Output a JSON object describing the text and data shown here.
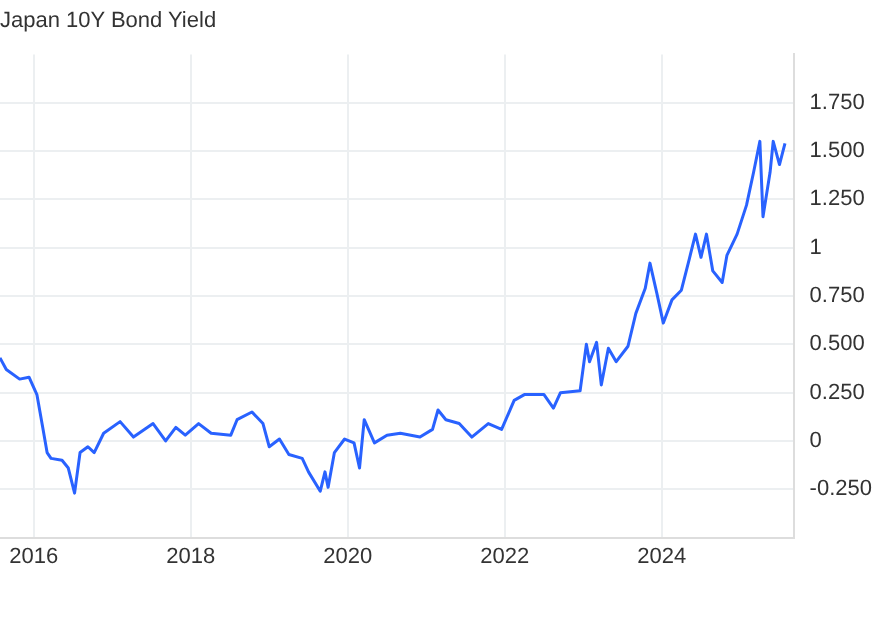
{
  "chart_data": {
    "type": "line",
    "title": "Japan 10Y Bond Yield",
    "x": [
      2015.57,
      2015.65,
      2015.82,
      2015.94,
      2016.04,
      2016.11,
      2016.17,
      2016.22,
      2016.36,
      2016.44,
      2016.52,
      2016.59,
      2016.69,
      2016.77,
      2016.89,
      2017.1,
      2017.27,
      2017.52,
      2017.68,
      2017.81,
      2017.93,
      2018.1,
      2018.26,
      2018.51,
      2018.59,
      2018.78,
      2018.92,
      2019.0,
      2019.13,
      2019.25,
      2019.42,
      2019.5,
      2019.65,
      2019.71,
      2019.75,
      2019.83,
      2019.96,
      2020.08,
      2020.15,
      2020.21,
      2020.34,
      2020.5,
      2020.67,
      2020.92,
      2021.08,
      2021.15,
      2021.25,
      2021.42,
      2021.58,
      2021.79,
      2021.96,
      2022.12,
      2022.25,
      2022.5,
      2022.62,
      2022.71,
      2022.96,
      2023.04,
      2023.08,
      2023.17,
      2023.23,
      2023.32,
      2023.42,
      2023.57,
      2023.67,
      2023.79,
      2023.85,
      2023.94,
      2024.02,
      2024.13,
      2024.25,
      2024.35,
      2024.43,
      2024.5,
      2024.57,
      2024.65,
      2024.77,
      2024.83,
      2024.96,
      2025.08,
      2025.17,
      2025.25,
      2025.29,
      2025.38,
      2025.42,
      2025.5,
      2025.57
    ],
    "series": [
      {
        "color": "#2962ff",
        "values": [
          0.43,
          0.37,
          0.32,
          0.33,
          0.24,
          0.08,
          -0.06,
          -0.09,
          -0.1,
          -0.14,
          -0.27,
          -0.06,
          -0.03,
          -0.06,
          0.04,
          0.1,
          0.02,
          0.09,
          0.0,
          0.07,
          0.03,
          0.09,
          0.04,
          0.03,
          0.11,
          0.15,
          0.09,
          -0.03,
          0.01,
          -0.07,
          -0.09,
          -0.16,
          -0.26,
          -0.16,
          -0.24,
          -0.06,
          0.01,
          -0.01,
          -0.14,
          0.11,
          -0.01,
          0.03,
          0.04,
          0.02,
          0.06,
          0.16,
          0.11,
          0.09,
          0.02,
          0.09,
          0.06,
          0.21,
          0.24,
          0.24,
          0.17,
          0.25,
          0.26,
          0.5,
          0.41,
          0.51,
          0.29,
          0.48,
          0.41,
          0.49,
          0.66,
          0.79,
          0.92,
          0.76,
          0.61,
          0.73,
          0.78,
          0.94,
          1.07,
          0.95,
          1.07,
          0.88,
          0.82,
          0.96,
          1.07,
          1.22,
          1.39,
          1.55,
          1.16,
          1.39,
          1.55,
          1.43,
          1.54
        ]
      }
    ],
    "xlim": [
      2015.57,
      2025.68
    ],
    "xticks": [
      2016,
      2018,
      2020,
      2022,
      2024
    ],
    "ylim": [
      -0.5,
      2.0
    ],
    "yticks": [
      {
        "value": -0.25,
        "label": "-0.250"
      },
      0,
      {
        "value": 0.25,
        "label": "0.250"
      },
      {
        "value": 0.5,
        "label": "0.500"
      },
      {
        "value": 0.75,
        "label": "0.750"
      },
      1,
      {
        "value": 1.25,
        "label": "1.250"
      },
      {
        "value": 1.5,
        "label": "1.500"
      },
      {
        "value": 1.75,
        "label": "1.750"
      }
    ],
    "grid": true,
    "legend": false,
    "marker": "none",
    "line_style": "solid"
  }
}
